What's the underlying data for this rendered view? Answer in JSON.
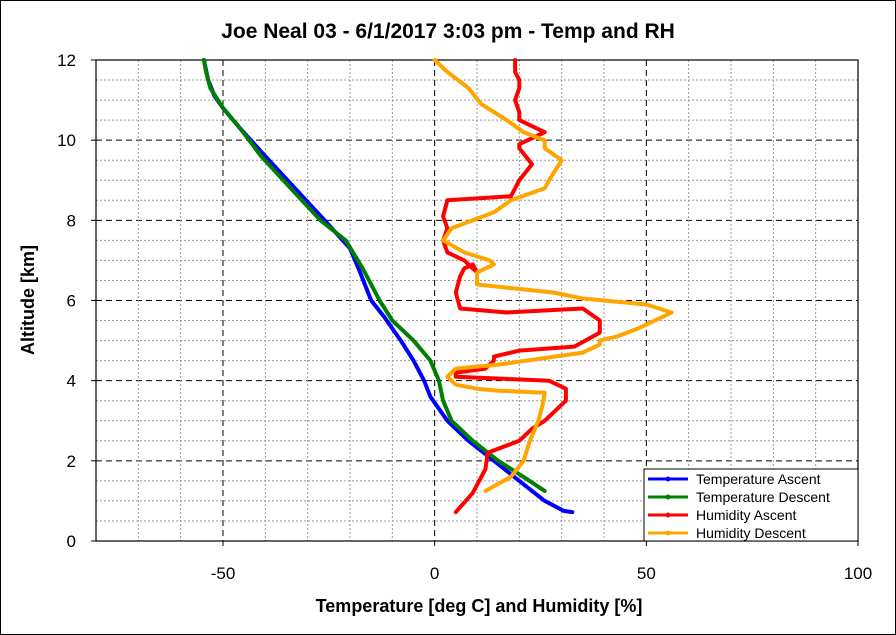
{
  "chart_data": {
    "type": "line",
    "title": "Joe Neal 03 - 6/1/2017 3:03 pm - Temp and RH",
    "xlabel": "Temperature [deg C] and Humidity [%]",
    "ylabel": "Altitude [km]",
    "xlim": [
      -80,
      100
    ],
    "ylim": [
      0,
      12
    ],
    "x_ticks": [
      -50,
      0,
      50,
      100
    ],
    "y_ticks": [
      0,
      2,
      4,
      6,
      8,
      10,
      12
    ],
    "grid": true,
    "legend_position": "bottom-right",
    "series": [
      {
        "name": "Temperature Ascent",
        "color": "#0000ff",
        "points": [
          [
            32.5,
            0.72
          ],
          [
            30.5,
            0.75
          ],
          [
            26,
            1.0
          ],
          [
            20,
            1.5
          ],
          [
            14,
            2.0
          ],
          [
            8,
            2.5
          ],
          [
            3,
            3.0
          ],
          [
            -1,
            3.6
          ],
          [
            -2.5,
            4.0
          ],
          [
            -5,
            4.5
          ],
          [
            -8,
            5.0
          ],
          [
            -12,
            5.6
          ],
          [
            -15,
            6.0
          ],
          [
            -18,
            6.8
          ],
          [
            -20,
            7.3
          ],
          [
            -26,
            8.0
          ],
          [
            -33,
            8.8
          ],
          [
            -40,
            9.6
          ],
          [
            -46,
            10.3
          ],
          [
            -50,
            10.8
          ],
          [
            -52,
            11.1
          ],
          [
            -53.5,
            11.5
          ],
          [
            -54.5,
            12.0
          ]
        ]
      },
      {
        "name": "Temperature Descent",
        "color": "#008000",
        "points": [
          [
            26,
            1.25
          ],
          [
            21,
            1.6
          ],
          [
            15,
            2.0
          ],
          [
            9,
            2.5
          ],
          [
            4,
            3.0
          ],
          [
            2,
            3.5
          ],
          [
            1,
            4.0
          ],
          [
            -1,
            4.5
          ],
          [
            -5,
            5.0
          ],
          [
            -10,
            5.5
          ],
          [
            -13,
            6.0
          ],
          [
            -17,
            6.8
          ],
          [
            -21,
            7.5
          ],
          [
            -27,
            8.0
          ],
          [
            -34,
            8.8
          ],
          [
            -41,
            9.6
          ],
          [
            -46,
            10.3
          ],
          [
            -50,
            10.8
          ],
          [
            -53,
            11.3
          ],
          [
            -54,
            11.7
          ],
          [
            -54.5,
            12.0
          ]
        ]
      },
      {
        "name": "Humidity Ascent",
        "color": "#ff0000",
        "points": [
          [
            5,
            0.72
          ],
          [
            9,
            1.2
          ],
          [
            12,
            1.8
          ],
          [
            12.5,
            2.2
          ],
          [
            20,
            2.5
          ],
          [
            23,
            2.8
          ],
          [
            26,
            3.0
          ],
          [
            31,
            3.5
          ],
          [
            31,
            3.8
          ],
          [
            27,
            4.0
          ],
          [
            5,
            4.1
          ],
          [
            5,
            4.2
          ],
          [
            12,
            4.3
          ],
          [
            14,
            4.5
          ],
          [
            14,
            4.6
          ],
          [
            20,
            4.75
          ],
          [
            33,
            4.85
          ],
          [
            39,
            5.2
          ],
          [
            39,
            5.5
          ],
          [
            35,
            5.8
          ],
          [
            17,
            5.7
          ],
          [
            6,
            5.8
          ],
          [
            5,
            6.2
          ],
          [
            6,
            6.6
          ],
          [
            7,
            6.8
          ],
          [
            9,
            6.9
          ],
          [
            10,
            6.7
          ],
          [
            7,
            7.0
          ],
          [
            3,
            7.2
          ],
          [
            2,
            7.5
          ],
          [
            3,
            7.8
          ],
          [
            2,
            8.1
          ],
          [
            3,
            8.5
          ],
          [
            18,
            8.6
          ],
          [
            20,
            9.0
          ],
          [
            23,
            9.4
          ],
          [
            20,
            9.8
          ],
          [
            20,
            9.9
          ],
          [
            26,
            10.2
          ],
          [
            20,
            10.5
          ],
          [
            20,
            10.7
          ],
          [
            19,
            11.0
          ],
          [
            20,
            11.3
          ],
          [
            20,
            11.5
          ],
          [
            19,
            11.7
          ],
          [
            19,
            12.0
          ]
        ]
      },
      {
        "name": "Humidity Descent",
        "color": "#ffa500",
        "points": [
          [
            12,
            1.25
          ],
          [
            18,
            1.6
          ],
          [
            21,
            2.0
          ],
          [
            22.5,
            2.5
          ],
          [
            24.5,
            3.0
          ],
          [
            25.5,
            3.4
          ],
          [
            26,
            3.7
          ],
          [
            15,
            3.75
          ],
          [
            10,
            3.8
          ],
          [
            5,
            3.9
          ],
          [
            3,
            4.1
          ],
          [
            5,
            4.3
          ],
          [
            15,
            4.4
          ],
          [
            25,
            4.55
          ],
          [
            35,
            4.7
          ],
          [
            39,
            4.9
          ],
          [
            39,
            5.0
          ],
          [
            43,
            5.1
          ],
          [
            48,
            5.3
          ],
          [
            56,
            5.7
          ],
          [
            50,
            5.9
          ],
          [
            35,
            6.05
          ],
          [
            28,
            6.2
          ],
          [
            10,
            6.4
          ],
          [
            10,
            6.7
          ],
          [
            14,
            6.9
          ],
          [
            13,
            7.0
          ],
          [
            7,
            7.2
          ],
          [
            2,
            7.5
          ],
          [
            4,
            7.8
          ],
          [
            14,
            8.2
          ],
          [
            18,
            8.5
          ],
          [
            26,
            8.8
          ],
          [
            27,
            9.0
          ],
          [
            30,
            9.5
          ],
          [
            26,
            9.8
          ],
          [
            26,
            10.0
          ],
          [
            21,
            10.2
          ],
          [
            17,
            10.5
          ],
          [
            11,
            10.9
          ],
          [
            8,
            11.3
          ],
          [
            3,
            11.7
          ],
          [
            0,
            12.0
          ]
        ]
      }
    ]
  }
}
